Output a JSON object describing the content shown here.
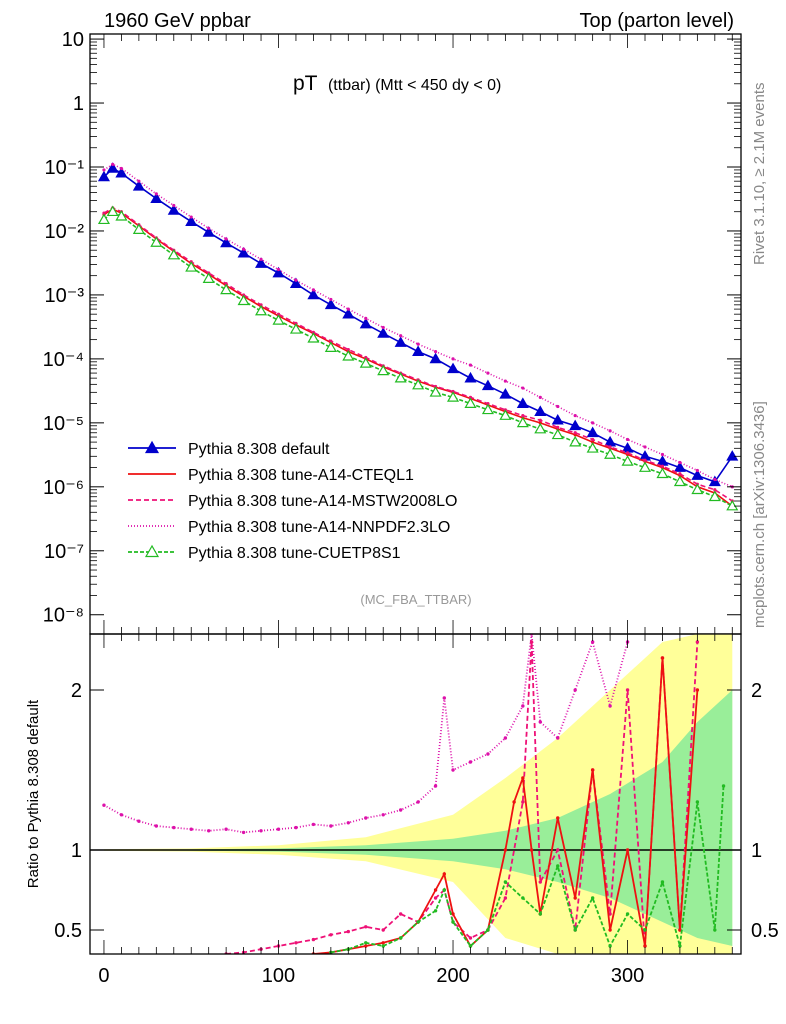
{
  "header": {
    "left": "1960 GeV ppbar",
    "right": "Top (parton level)"
  },
  "side_labels": {
    "rivet": "Rivet 3.1.10, ≥ 2.1M events",
    "mcplots": "mcplots.cern.ch [arXiv:1306.3436]"
  },
  "chart_data": [
    {
      "type": "line",
      "title_main": "pT",
      "title_sub": "(ttbar) (Mtt < 450 dy < 0)",
      "watermark": "(MC_FBA_TTBAR)",
      "yscale": "log",
      "xlim": [
        -8,
        365
      ],
      "ylim": [
        5e-09,
        12
      ],
      "y_ticks": [
        {
          "v": 10,
          "t": "10"
        },
        {
          "v": 1,
          "t": "1"
        },
        {
          "v": 0.1,
          "t": "10⁻¹"
        },
        {
          "v": 0.01,
          "t": "10⁻²"
        },
        {
          "v": 0.001,
          "t": "10⁻³"
        },
        {
          "v": 0.0001,
          "t": "10⁻⁴"
        },
        {
          "v": 1e-05,
          "t": "10⁻⁵"
        },
        {
          "v": 1e-06,
          "t": "10⁻⁶"
        },
        {
          "v": 1e-07,
          "t": "10⁻⁷"
        },
        {
          "v": 1e-08,
          "t": "10⁻⁸"
        }
      ],
      "legend_placement": "bottom-left",
      "series": [
        {
          "name": "Pythia 8.308 default",
          "color": "#0000cc",
          "dash": "",
          "marker": "tri-filled",
          "x": [
            0,
            5,
            10,
            20,
            30,
            40,
            50,
            60,
            70,
            80,
            90,
            100,
            110,
            120,
            130,
            140,
            150,
            160,
            170,
            180,
            190,
            200,
            210,
            220,
            230,
            240,
            250,
            260,
            270,
            280,
            290,
            300,
            310,
            320,
            330,
            340,
            350,
            360
          ],
          "y": [
            0.07,
            0.095,
            0.08,
            0.05,
            0.032,
            0.021,
            0.014,
            0.0095,
            0.0065,
            0.0045,
            0.0031,
            0.0022,
            0.0015,
            0.001,
            0.0007,
            0.0005,
            0.00035,
            0.00025,
            0.00018,
            0.00013,
            0.0001,
            7e-05,
            5e-05,
            3.8e-05,
            2.8e-05,
            2e-05,
            1.5e-05,
            1.1e-05,
            9e-06,
            7e-06,
            5e-06,
            4e-06,
            3e-06,
            2.5e-06,
            2e-06,
            1.5e-06,
            1.2e-06,
            3e-06
          ]
        },
        {
          "name": "Pythia 8.308 tune-A14-CTEQL1",
          "color": "#ee1111",
          "dash": "",
          "marker": "",
          "x": [
            0,
            5,
            10,
            20,
            30,
            40,
            50,
            60,
            70,
            80,
            90,
            100,
            110,
            120,
            130,
            140,
            150,
            160,
            170,
            180,
            190,
            200,
            210,
            220,
            230,
            240,
            250,
            260,
            270,
            280,
            290,
            300,
            310,
            320,
            330,
            340,
            350,
            360
          ],
          "y": [
            0.018,
            0.022,
            0.019,
            0.012,
            0.0075,
            0.0048,
            0.0031,
            0.0021,
            0.0014,
            0.00095,
            0.00066,
            0.00047,
            0.00034,
            0.00025,
            0.00018,
            0.00013,
            0.0001,
            7.5e-05,
            5.8e-05,
            4.5e-05,
            3.6e-05,
            3e-05,
            2.4e-05,
            1.9e-05,
            1.5e-05,
            1.2e-05,
            1e-05,
            8e-06,
            6.5e-06,
            5e-06,
            4e-06,
            3.2e-06,
            2.5e-06,
            2e-06,
            1.5e-06,
            1e-06,
            8e-07,
            5e-07
          ]
        },
        {
          "name": "Pythia 8.308 tune-A14-MSTW2008LO",
          "color": "#ee1177",
          "dash": "5,3",
          "marker": "",
          "x": [
            0,
            5,
            10,
            20,
            30,
            40,
            50,
            60,
            70,
            80,
            90,
            100,
            110,
            120,
            130,
            140,
            150,
            160,
            170,
            180,
            190,
            200,
            210,
            220,
            230,
            240,
            250,
            260,
            270,
            280,
            290,
            300,
            310,
            320,
            330,
            340,
            350,
            360
          ],
          "y": [
            0.019,
            0.023,
            0.02,
            0.0125,
            0.0078,
            0.005,
            0.0033,
            0.0022,
            0.0015,
            0.001,
            0.0007,
            0.0005,
            0.00036,
            0.00026,
            0.00019,
            0.00014,
            0.000105,
            7.8e-05,
            6e-05,
            4.7e-05,
            3.7e-05,
            3.1e-05,
            2.5e-05,
            2e-05,
            1.6e-05,
            1.3e-05,
            1.1e-05,
            8.5e-06,
            7e-06,
            5.5e-06,
            4.2e-06,
            3.4e-06,
            2.6e-06,
            2.1e-06,
            1.6e-06,
            1.1e-06,
            9e-07,
            6e-07
          ]
        },
        {
          "name": "Pythia 8.308 tune-A14-NNPDF2.3LO",
          "color": "#dd11aa",
          "dash": "1,2",
          "marker": "",
          "x": [
            0,
            5,
            10,
            20,
            30,
            40,
            50,
            60,
            70,
            80,
            90,
            100,
            110,
            120,
            130,
            140,
            150,
            160,
            170,
            180,
            190,
            200,
            210,
            220,
            230,
            240,
            250,
            260,
            270,
            280,
            290,
            300,
            310,
            320,
            330,
            340,
            350,
            360
          ],
          "y": [
            0.09,
            0.11,
            0.095,
            0.06,
            0.038,
            0.025,
            0.0165,
            0.011,
            0.0075,
            0.0052,
            0.0036,
            0.0025,
            0.0017,
            0.0012,
            0.00085,
            0.0006,
            0.00043,
            0.00031,
            0.00023,
            0.00017,
            0.00013,
            0.0001,
            8e-05,
            6e-05,
            4.5e-05,
            3.5e-05,
            2.5e-05,
            1.8e-05,
            1.3e-05,
            1e-05,
            7.5e-06,
            5.5e-06,
            4.2e-06,
            3.2e-06,
            2.4e-06,
            1.8e-06,
            1.3e-06,
            1e-06
          ]
        },
        {
          "name": "Pythia 8.308 tune-CUETP8S1",
          "color": "#22bb22",
          "dash": "4,2",
          "marker": "tri-open",
          "x": [
            0,
            5,
            10,
            20,
            30,
            40,
            50,
            60,
            70,
            80,
            90,
            100,
            110,
            120,
            130,
            140,
            150,
            160,
            170,
            180,
            190,
            200,
            210,
            220,
            230,
            240,
            250,
            260,
            270,
            280,
            290,
            300,
            310,
            320,
            330,
            340,
            350,
            360
          ],
          "y": [
            0.015,
            0.02,
            0.017,
            0.0105,
            0.0066,
            0.0042,
            0.0027,
            0.0018,
            0.0012,
            0.00081,
            0.00056,
            0.0004,
            0.00029,
            0.00021,
            0.00015,
            0.00011,
            8.5e-05,
            6.5e-05,
            5e-05,
            3.9e-05,
            3e-05,
            2.5e-05,
            2e-05,
            1.6e-05,
            1.3e-05,
            1e-05,
            8e-06,
            6.5e-06,
            5e-06,
            4e-06,
            3.2e-06,
            2.5e-06,
            2e-06,
            1.6e-06,
            1.2e-06,
            9e-07,
            7e-07,
            5e-07
          ]
        }
      ]
    },
    {
      "type": "line",
      "ylabel": "Ratio to Pythia 8.308 default",
      "xlim": [
        -8,
        365
      ],
      "ylim": [
        0.35,
        2.35
      ],
      "x_ticks": [
        0,
        100,
        200,
        300
      ],
      "y_ticks": [
        {
          "v": 2,
          "t": "2"
        },
        {
          "v": 1,
          "t": "1"
        },
        {
          "v": 0.5,
          "t": "0.5"
        }
      ],
      "bands": [
        {
          "name": "outer",
          "color": "#ffff99",
          "x": [
            0,
            50,
            100,
            150,
            200,
            230,
            260,
            290,
            320,
            340,
            360
          ],
          "lo": [
            0.995,
            0.99,
            0.97,
            0.93,
            0.8,
            0.45,
            0.35,
            0.35,
            0.35,
            0.35,
            0.35
          ],
          "hi": [
            1.005,
            1.01,
            1.03,
            1.08,
            1.22,
            1.45,
            1.7,
            2.0,
            2.3,
            2.35,
            2.35
          ]
        },
        {
          "name": "inner",
          "color": "#99ee99",
          "x": [
            0,
            50,
            100,
            150,
            200,
            230,
            260,
            290,
            320,
            340,
            360
          ],
          "lo": [
            0.998,
            0.996,
            0.99,
            0.97,
            0.93,
            0.88,
            0.8,
            0.7,
            0.55,
            0.45,
            0.4
          ],
          "hi": [
            1.002,
            1.004,
            1.01,
            1.03,
            1.07,
            1.12,
            1.2,
            1.35,
            1.55,
            1.8,
            2.0
          ]
        }
      ],
      "series": [
        {
          "name": "NNPDF2.3LO ratio",
          "color": "#dd11aa",
          "dash": "1,2",
          "x": [
            0,
            10,
            20,
            30,
            40,
            50,
            60,
            70,
            80,
            90,
            100,
            110,
            120,
            130,
            140,
            150,
            160,
            170,
            180,
            190,
            195,
            200,
            210,
            220,
            230,
            240,
            245,
            250,
            260,
            270,
            280,
            290,
            300
          ],
          "y": [
            1.28,
            1.22,
            1.18,
            1.15,
            1.14,
            1.13,
            1.12,
            1.13,
            1.11,
            1.12,
            1.13,
            1.14,
            1.16,
            1.15,
            1.17,
            1.2,
            1.22,
            1.25,
            1.3,
            1.4,
            1.95,
            1.5,
            1.55,
            1.6,
            1.7,
            1.9,
            2.35,
            1.8,
            1.7,
            2.0,
            2.3,
            1.9,
            2.3
          ]
        },
        {
          "name": "MSTW2008LO ratio",
          "color": "#ee1177",
          "dash": "5,3",
          "x": [
            70,
            80,
            90,
            100,
            110,
            120,
            130,
            140,
            150,
            160,
            170,
            180,
            190,
            195,
            200,
            210,
            220,
            230,
            240,
            245,
            250,
            260,
            270,
            280,
            290,
            300,
            310,
            320,
            330,
            340
          ],
          "y": [
            0.35,
            0.36,
            0.38,
            0.4,
            0.42,
            0.44,
            0.47,
            0.49,
            0.52,
            0.5,
            0.6,
            0.55,
            0.7,
            0.75,
            0.55,
            0.45,
            0.5,
            0.7,
            1.3,
            2.3,
            0.8,
            1.0,
            0.5,
            1.5,
            0.6,
            2.0,
            0.4,
            2.2,
            0.5,
            2.3
          ]
        },
        {
          "name": "CTEQL1 ratio",
          "color": "#ee1111",
          "dash": "",
          "x": [
            120,
            130,
            140,
            150,
            160,
            170,
            180,
            190,
            195,
            200,
            210,
            220,
            230,
            235,
            240,
            245,
            250,
            260,
            270,
            280,
            290,
            300,
            310,
            320,
            330,
            340
          ],
          "y": [
            0.35,
            0.36,
            0.38,
            0.4,
            0.42,
            0.45,
            0.55,
            0.75,
            0.85,
            0.6,
            0.4,
            0.5,
            1.0,
            1.3,
            1.45,
            1.0,
            0.6,
            1.2,
            0.7,
            1.5,
            0.5,
            1.0,
            0.4,
            2.2,
            0.5,
            2.0
          ]
        },
        {
          "name": "CUETP8S1 ratio",
          "color": "#22bb22",
          "dash": "4,2",
          "x": [
            130,
            140,
            150,
            160,
            170,
            180,
            190,
            195,
            200,
            210,
            220,
            230,
            240,
            250,
            260,
            270,
            280,
            290,
            300,
            310,
            320,
            330,
            340,
            350,
            355
          ],
          "y": [
            0.36,
            0.38,
            0.42,
            0.4,
            0.45,
            0.55,
            0.62,
            0.75,
            0.55,
            0.4,
            0.5,
            0.8,
            0.7,
            0.6,
            0.9,
            0.5,
            0.7,
            0.4,
            0.6,
            0.5,
            0.8,
            0.4,
            1.3,
            0.5,
            1.4
          ]
        }
      ]
    }
  ]
}
